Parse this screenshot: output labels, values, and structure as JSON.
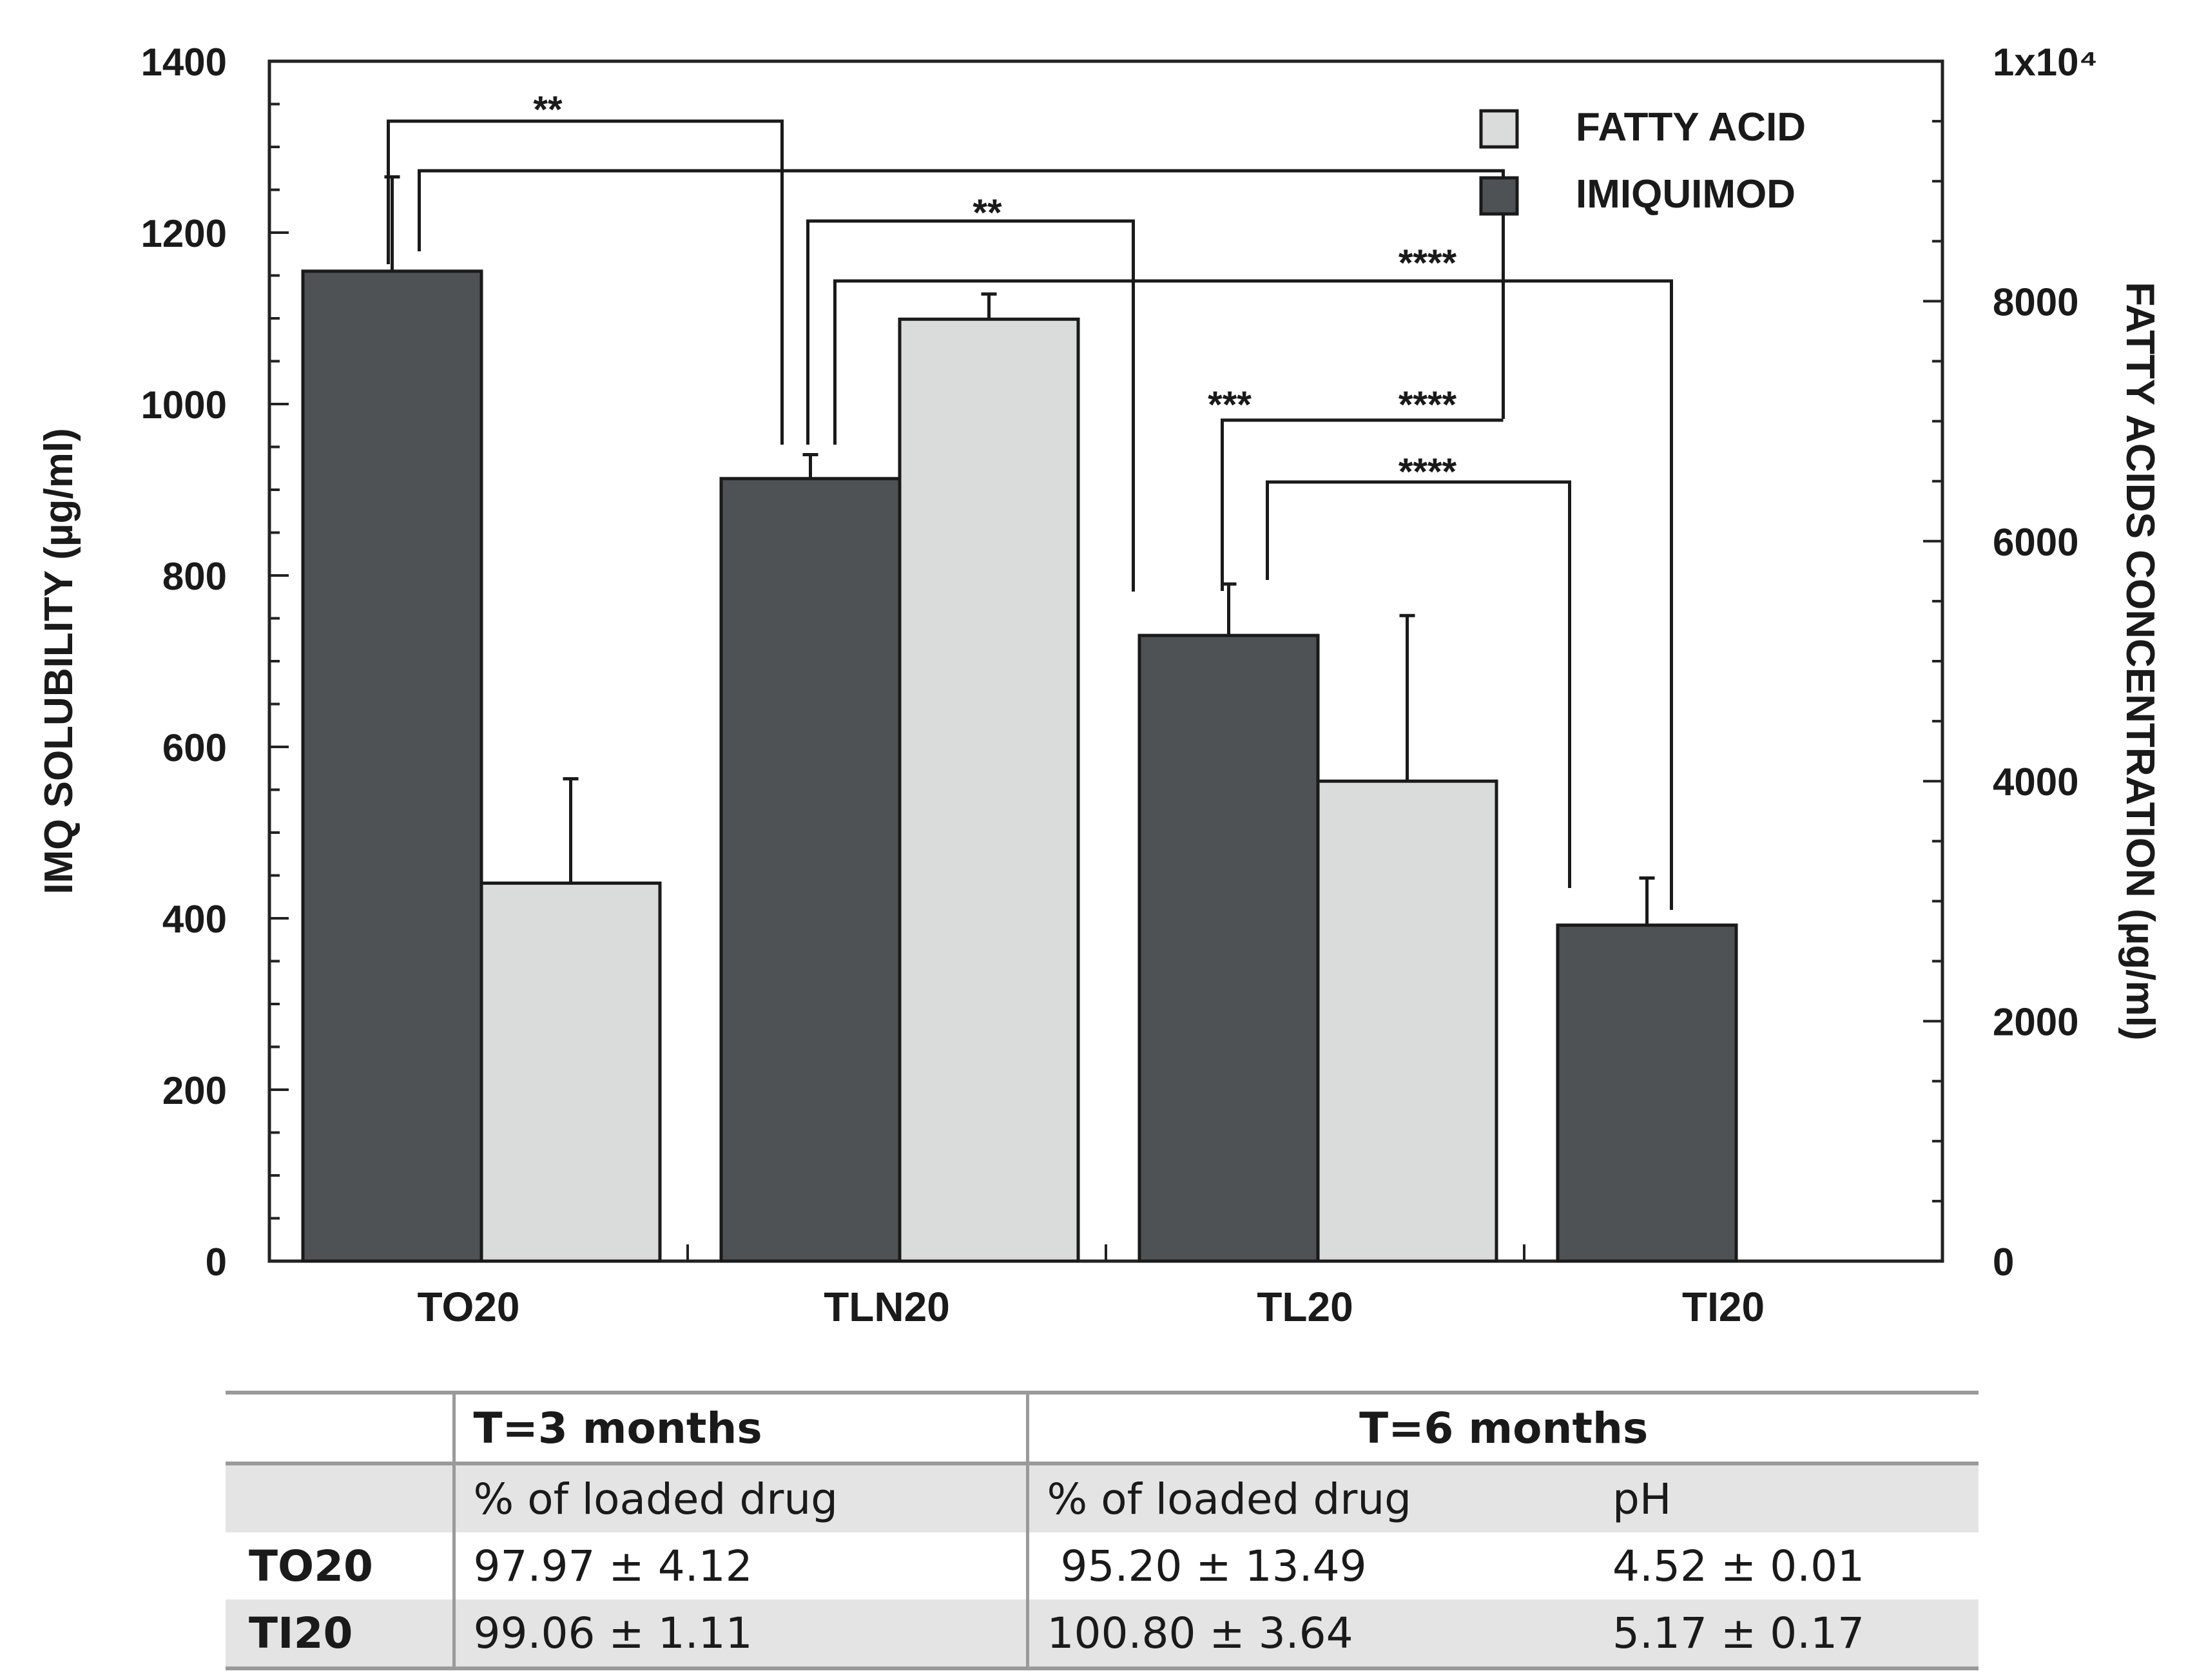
{
  "chart_data": {
    "type": "bar",
    "categories": [
      "TO20",
      "TLN20",
      "TL20",
      "TI20"
    ],
    "series": [
      {
        "name": "IMIQUIMOD",
        "axis": "left",
        "color": "#4f5254",
        "values": [
          1155,
          913,
          730,
          392
        ],
        "errors": [
          110,
          28,
          60,
          55
        ]
      },
      {
        "name": "FATTY ACID",
        "axis": "right",
        "color": "#dadcdb",
        "values": [
          3150,
          7850,
          4000,
          null
        ],
        "errors": [
          870,
          210,
          1380,
          null
        ]
      }
    ],
    "ylabel": "IMQ SOLUBILITY (µg/ml)",
    "y2label": "FATTY ACIDS CONCENTRATION (µg/ml)",
    "ylim": [
      0,
      1400
    ],
    "y2lim": [
      0,
      10000
    ],
    "yticks": [
      "0",
      "200",
      "400",
      "600",
      "800",
      "1000",
      "1200",
      "1400"
    ],
    "y2ticks": [
      "0",
      "2000",
      "4000",
      "6000",
      "8000",
      "1x10⁴"
    ],
    "legend": [
      "FATTY ACID",
      "IMIQUIMOD"
    ],
    "legend_position": "top-right",
    "significance": [
      {
        "from": "TO20",
        "to": "TLN20",
        "label": "**"
      },
      {
        "from": "TO20",
        "to": "TL20",
        "label": ""
      },
      {
        "from": "TLN20",
        "to": "TL20",
        "label": "**"
      },
      {
        "from": "TLN20",
        "to": "TI20",
        "label": "****"
      },
      {
        "from": "TL20",
        "to": "TL20",
        "label": "***"
      },
      {
        "from": "TO20",
        "to": "TI20",
        "label": "****"
      },
      {
        "from": "TL20",
        "to": "TI20",
        "label": "****"
      }
    ]
  },
  "table": {
    "header": {
      "t3": "T=3 months",
      "t6": "T=6 months"
    },
    "subheader": {
      "t3_drug": "% of loaded drug",
      "t6_drug": "% of loaded drug",
      "t6_ph": "pH"
    },
    "rows": [
      {
        "label": "TO20",
        "t3_drug": "97.97 ± 4.12",
        "t6_drug": " 95.20 ± 13.49",
        "t6_ph": "4.52 ± 0.01"
      },
      {
        "label": "TI20",
        "t3_drug": "99.06 ± 1.11",
        "t6_drug": "100.80 ± 3.64",
        "t6_ph": "5.17 ± 0.17"
      }
    ]
  }
}
